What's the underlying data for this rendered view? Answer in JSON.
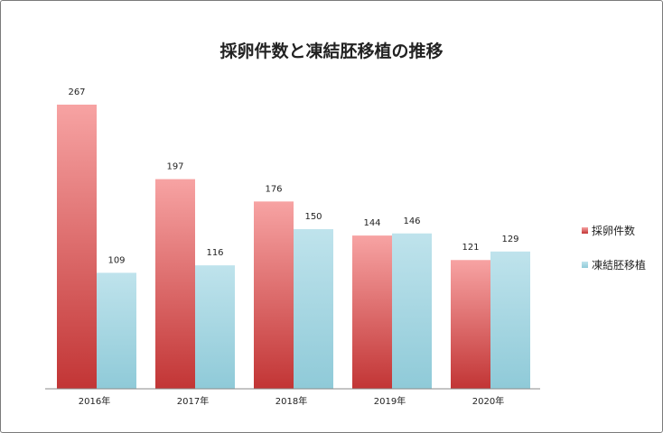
{
  "chart_data": {
    "type": "bar",
    "title": "採卵件数と凍結胚移植の推移",
    "categories": [
      "2016年",
      "2017年",
      "2018年",
      "2019年",
      "2020年"
    ],
    "series": [
      {
        "name": "採卵件数",
        "values": [
          267,
          197,
          176,
          144,
          121
        ],
        "color_top": "#f7a3a3",
        "color_bottom": "#c23535"
      },
      {
        "name": "凍結胚移植",
        "values": [
          109,
          116,
          150,
          146,
          129
        ],
        "color_top": "#bfe3ec",
        "color_bottom": "#8fcad8"
      }
    ],
    "ylim": [
      0,
      267
    ],
    "xlabel": "",
    "ylabel": "",
    "grid": false,
    "legend_position": "right"
  }
}
